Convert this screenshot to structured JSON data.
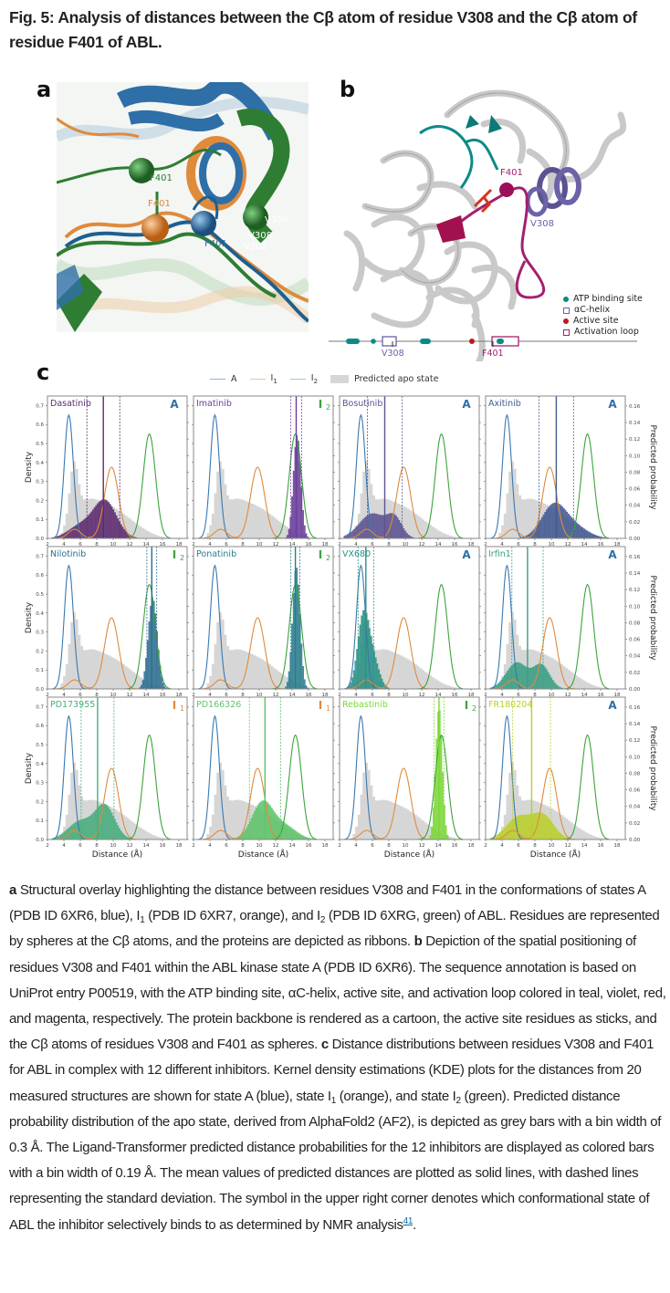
{
  "figure": {
    "title": "Fig. 5: Analysis of distances between the Cβ atom of residue V308 and the Cβ atom of residue F401 of ABL.",
    "panel_labels": {
      "a": "a",
      "b": "b",
      "c": "c"
    }
  },
  "panel_a": {
    "labels": [
      {
        "text": "F401",
        "state": "I2",
        "color": "#2e7d32"
      },
      {
        "text": "F401",
        "state": "I1",
        "color": "#e08a3c"
      },
      {
        "text": "F401",
        "state": "A",
        "color": "#2f6fa7"
      },
      {
        "text": "V308",
        "state": "I2",
        "color": "#ffffff"
      },
      {
        "text": "V308",
        "state": "A",
        "color": "#ffffff"
      },
      {
        "text": "V308",
        "state": "I1",
        "color": "#ffffff"
      }
    ]
  },
  "panel_b": {
    "labels": {
      "f401": "F401",
      "v308": "V308"
    },
    "legend": [
      {
        "label": "ATP binding site",
        "marker": "dot",
        "color": "#0d8a86"
      },
      {
        "label": "αC-helix",
        "marker": "box",
        "color": "#6b62a8"
      },
      {
        "label": "Active site",
        "marker": "dot",
        "color": "#c0171e"
      },
      {
        "label": "Activation loop",
        "marker": "box",
        "color": "#a3206f"
      }
    ],
    "sequence": {
      "v308_label": "V308",
      "f401_label": "F401"
    }
  },
  "chart_data": {
    "type": "histogram+kde",
    "legend": [
      {
        "label": "A",
        "color": "#3a78b0",
        "kind": "line"
      },
      {
        "label": "I1",
        "color": "#e08a3c",
        "kind": "line"
      },
      {
        "label": "I2",
        "color": "#3da33d",
        "kind": "line"
      },
      {
        "label": "Predicted apo state",
        "color": "#d6d6d6",
        "kind": "bar"
      }
    ],
    "legend_position": "top-center",
    "xlabel": "Distance (Å)",
    "ylabel_left": "Density",
    "ylabel_right": "Predicted probability",
    "xlim": [
      2,
      19
    ],
    "xticks": [
      2,
      4,
      6,
      8,
      10,
      12,
      14,
      16,
      18
    ],
    "ylim_left": [
      0,
      0.75
    ],
    "yticks_left": [
      0.0,
      0.1,
      0.2,
      0.3,
      0.4,
      0.5,
      0.6,
      0.7
    ],
    "ylim_right": [
      0,
      0.172
    ],
    "yticks_right": [
      0.0,
      0.02,
      0.04,
      0.06,
      0.08,
      0.1,
      0.12,
      0.14,
      0.16
    ],
    "kde": {
      "A": {
        "components": [
          {
            "mu": 4.6,
            "sigma": 0.55,
            "height": 0.65
          }
        ]
      },
      "I1": {
        "components": [
          {
            "mu": 9.8,
            "sigma": 0.85,
            "height": 0.375
          },
          {
            "mu": 5.3,
            "sigma": 0.75,
            "height": 0.048
          }
        ]
      },
      "I2": {
        "components": [
          {
            "mu": 14.4,
            "sigma": 0.75,
            "height": 0.55
          }
        ]
      }
    },
    "apo_state_bin_width": 0.3,
    "inhibitor_bin_width": 0.19,
    "panels": [
      {
        "inhibitor": "Dasatinib",
        "state": "A",
        "color": "#5b2a6e",
        "mean": 8.8,
        "sd": 2.0,
        "shape": [
          {
            "mu": 9.0,
            "sigma": 1.4,
            "peak": 0.045
          },
          {
            "mu": 6.0,
            "sigma": 1.5,
            "peak": 0.015
          }
        ]
      },
      {
        "inhibitor": "Imatinib",
        "state": "I2",
        "color": "#6a3d9a",
        "mean": 14.5,
        "sd": 0.65,
        "shape": [
          {
            "mu": 14.6,
            "sigma": 0.45,
            "peak": 0.125
          }
        ]
      },
      {
        "inhibitor": "Bosutinib",
        "state": "A",
        "color": "#5a5391",
        "mean": 7.5,
        "sd": 2.1,
        "shape": [
          {
            "mu": 8.7,
            "sigma": 0.9,
            "peak": 0.022
          },
          {
            "mu": 6.0,
            "sigma": 1.6,
            "peak": 0.03
          }
        ]
      },
      {
        "inhibitor": "Axitinib",
        "state": "A",
        "color": "#435a8f",
        "mean": 10.6,
        "sd": 2.1,
        "shape": [
          {
            "mu": 10.3,
            "sigma": 1.5,
            "peak": 0.04
          },
          {
            "mu": 13.0,
            "sigma": 1.6,
            "peak": 0.012
          }
        ]
      },
      {
        "inhibitor": "Nilotinib",
        "state": "I2",
        "color": "#2d6d8f",
        "mean": 14.7,
        "sd": 0.6,
        "shape": [
          {
            "mu": 14.8,
            "sigma": 0.55,
            "peak": 0.11
          }
        ]
      },
      {
        "inhibitor": "Ponatinib",
        "state": "I2",
        "color": "#2b7c8e",
        "mean": 14.4,
        "sd": 0.55,
        "shape": [
          {
            "mu": 14.5,
            "sigma": 0.45,
            "peak": 0.148
          }
        ]
      },
      {
        "inhibitor": "VX680",
        "state": "A",
        "color": "#2a9184",
        "mean": 5.2,
        "sd": 0.95,
        "shape": [
          {
            "mu": 4.9,
            "sigma": 0.7,
            "peak": 0.09
          },
          {
            "mu": 6.2,
            "sigma": 0.7,
            "peak": 0.03
          }
        ]
      },
      {
        "inhibitor": "Irfin1",
        "state": "A",
        "color": "#3a9e84",
        "mean": 7.1,
        "sd": 1.9,
        "shape": [
          {
            "mu": 5.8,
            "sigma": 1.3,
            "peak": 0.032
          },
          {
            "mu": 8.8,
            "sigma": 1.0,
            "peak": 0.028
          }
        ]
      },
      {
        "inhibitor": "PD173955",
        "state": "I1",
        "color": "#47ad7c",
        "mean": 8.1,
        "sd": 2.0,
        "shape": [
          {
            "mu": 9.0,
            "sigma": 1.2,
            "peak": 0.04
          },
          {
            "mu": 6.0,
            "sigma": 1.5,
            "peak": 0.022
          }
        ]
      },
      {
        "inhibitor": "PD166326",
        "state": "I1",
        "color": "#5fc46a",
        "mean": 10.7,
        "sd": 1.9,
        "shape": [
          {
            "mu": 10.4,
            "sigma": 1.3,
            "peak": 0.045
          },
          {
            "mu": 13.2,
            "sigma": 1.4,
            "peak": 0.015
          }
        ]
      },
      {
        "inhibitor": "Rebastinib",
        "state": "I2",
        "color": "#7cd63a",
        "mean": 14.1,
        "sd": 0.6,
        "shape": [
          {
            "mu": 14.1,
            "sigma": 0.4,
            "peak": 0.16
          }
        ]
      },
      {
        "inhibitor": "FR180204",
        "state": "A",
        "color": "#b9cf2a",
        "mean": 7.6,
        "sd": 2.3,
        "shape": [
          {
            "mu": 6.0,
            "sigma": 1.5,
            "peak": 0.027
          },
          {
            "mu": 9.0,
            "sigma": 1.3,
            "peak": 0.028
          }
        ]
      }
    ],
    "state_colors": {
      "A": "#2f6fa7",
      "I1": "#e08a3c",
      "I2": "#3da33d"
    }
  },
  "caption": {
    "a_label": "a",
    "a_text_1": " Structural overlay highlighting the distance between residues V308 and F401 in the conformations of states A (PDB ID 6XR6, blue), I",
    "a_sub_1": "1",
    "a_text_2": " (PDB ID 6XR7, orange), and I",
    "a_sub_2": "2",
    "a_text_3": " (PDB ID 6XRG, green) of ABL. Residues are represented by spheres at the Cβ atoms, and the proteins are depicted as ribbons. ",
    "b_label": "b",
    "b_text": " Depiction of the spatial positioning of residues V308 and F401 within the ABL kinase state A (PDB ID 6XR6). The sequence annotation is based on UniProt entry P00519, with the ATP binding site, αC-helix, active site, and activation loop colored in teal, violet, red, and magenta, respectively. The protein backbone is rendered as a cartoon, the active site residues as sticks, and the Cβ atoms of residues V308 and F401 as spheres. ",
    "c_label": "c",
    "c_text_1": " Distance distributions between residues V308 and F401 for ABL in complex with 12 different inhibitors. Kernel density estimations (KDE) plots for the distances from 20 measured structures are shown for state A (blue), state I",
    "c_sub_1": "1",
    "c_text_2": " (orange), and state I",
    "c_sub_2": "2",
    "c_text_3": " (green). Predicted distance probability distribution of the apo state, derived from AlphaFold2 (AF2), is depicted as grey bars with a bin width of 0.3 Å. The Ligand-Transformer predicted distance probabilities for the 12 inhibitors are displayed as colored bars with a bin width of 0.19 Å. The mean values of predicted distances are plotted as solid lines, with dashed lines representing the standard deviation. The symbol in the upper right corner denotes which conformational state of ABL the inhibitor selectively binds to as determined by NMR analysis",
    "ref": "41",
    "end": "."
  }
}
